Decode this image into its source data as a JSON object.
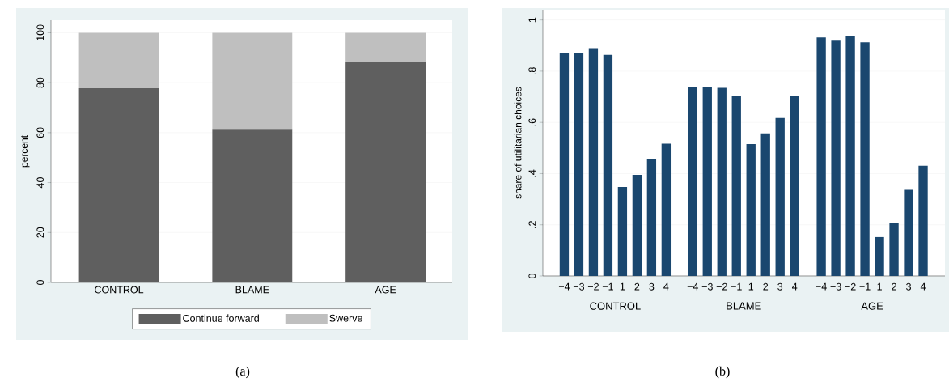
{
  "chart_data": [
    {
      "type": "bar",
      "stacked": true,
      "ylabel": "percent",
      "categories": [
        "CONTROL",
        "BLAME",
        "AGE"
      ],
      "series": [
        {
          "name": "Continue forward",
          "color": "#5f5f5f",
          "values": [
            77.8,
            61.2,
            88.4
          ]
        },
        {
          "name": "Swerve",
          "color": "#bfbfbf",
          "values": [
            22.2,
            38.8,
            11.6
          ]
        }
      ],
      "ylim": [
        0,
        105
      ],
      "yticks": [
        0,
        20,
        40,
        60,
        80,
        100
      ],
      "grid": "y",
      "legend": "bottom",
      "annotations": [
        "(a)"
      ]
    },
    {
      "type": "bar",
      "ylabel": "share of utilitarian choices",
      "categories": [
        "−4",
        "−3",
        "−2",
        "−1",
        "1",
        "2",
        "3",
        "4",
        "−4",
        "−3",
        "−2",
        "−1",
        "1",
        "2",
        "3",
        "4",
        "−4",
        "−3",
        "−2",
        "−1",
        "1",
        "2",
        "3",
        "4"
      ],
      "values": [
        0.872,
        0.869,
        0.89,
        0.864,
        0.348,
        0.395,
        0.456,
        0.517,
        0.739,
        0.738,
        0.735,
        0.704,
        0.515,
        0.557,
        0.617,
        0.704,
        0.932,
        0.919,
        0.936,
        0.913,
        0.152,
        0.208,
        0.337,
        0.431
      ],
      "color": "#1a476f",
      "ylim": [
        0,
        1.04
      ],
      "yticks": [
        0,
        {
          "value": 0.2,
          "label": ".2"
        },
        {
          "value": 0.4,
          "label": ".4"
        },
        {
          "value": 0.6,
          "label": ".6"
        },
        {
          "value": 0.8,
          "label": ".8"
        },
        1
      ],
      "grid": "y",
      "annotations": [
        "CONTROL",
        "BLAME",
        "AGE",
        "(b)"
      ]
    }
  ]
}
